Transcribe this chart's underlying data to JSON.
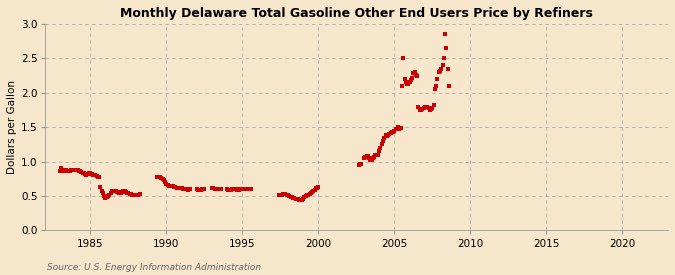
{
  "title": "Monthly Delaware Total Gasoline Other End Users Price by Refiners",
  "ylabel": "Dollars per Gallon",
  "source_text": "Source: U.S. Energy Information Administration",
  "background_color": "#f5e6cc",
  "plot_background_color": "#f5e6cc",
  "marker_color": "#cc0000",
  "marker_size": 2.5,
  "xlim": [
    1982,
    2023
  ],
  "ylim": [
    0.0,
    3.0
  ],
  "xticks": [
    1985,
    1990,
    1995,
    2000,
    2005,
    2010,
    2015,
    2020
  ],
  "yticks": [
    0.0,
    0.5,
    1.0,
    1.5,
    2.0,
    2.5,
    3.0
  ],
  "data": [
    [
      1983.0,
      0.87
    ],
    [
      1983.08,
      0.9
    ],
    [
      1983.17,
      0.88
    ],
    [
      1983.25,
      0.87
    ],
    [
      1983.33,
      0.88
    ],
    [
      1983.42,
      0.88
    ],
    [
      1983.5,
      0.87
    ],
    [
      1983.58,
      0.87
    ],
    [
      1983.67,
      0.86
    ],
    [
      1983.75,
      0.88
    ],
    [
      1983.83,
      0.88
    ],
    [
      1983.92,
      0.88
    ],
    [
      1984.0,
      0.88
    ],
    [
      1984.08,
      0.88
    ],
    [
      1984.17,
      0.88
    ],
    [
      1984.25,
      0.87
    ],
    [
      1984.33,
      0.86
    ],
    [
      1984.42,
      0.85
    ],
    [
      1984.5,
      0.84
    ],
    [
      1984.58,
      0.83
    ],
    [
      1984.67,
      0.82
    ],
    [
      1984.75,
      0.81
    ],
    [
      1984.83,
      0.82
    ],
    [
      1984.92,
      0.83
    ],
    [
      1985.0,
      0.83
    ],
    [
      1985.08,
      0.82
    ],
    [
      1985.17,
      0.81
    ],
    [
      1985.25,
      0.8
    ],
    [
      1985.33,
      0.8
    ],
    [
      1985.42,
      0.79
    ],
    [
      1985.5,
      0.78
    ],
    [
      1985.58,
      0.77
    ],
    [
      1985.67,
      0.63
    ],
    [
      1985.75,
      0.57
    ],
    [
      1985.83,
      0.55
    ],
    [
      1985.92,
      0.5
    ],
    [
      1986.0,
      0.47
    ],
    [
      1986.08,
      0.48
    ],
    [
      1986.17,
      0.5
    ],
    [
      1986.25,
      0.52
    ],
    [
      1986.33,
      0.55
    ],
    [
      1986.42,
      0.57
    ],
    [
      1986.5,
      0.58
    ],
    [
      1986.58,
      0.57
    ],
    [
      1986.67,
      0.57
    ],
    [
      1986.75,
      0.56
    ],
    [
      1986.83,
      0.56
    ],
    [
      1986.92,
      0.55
    ],
    [
      1987.0,
      0.55
    ],
    [
      1987.08,
      0.56
    ],
    [
      1987.17,
      0.57
    ],
    [
      1987.25,
      0.57
    ],
    [
      1987.33,
      0.56
    ],
    [
      1987.42,
      0.55
    ],
    [
      1987.5,
      0.54
    ],
    [
      1987.58,
      0.53
    ],
    [
      1987.67,
      0.53
    ],
    [
      1987.75,
      0.52
    ],
    [
      1987.83,
      0.52
    ],
    [
      1987.92,
      0.51
    ],
    [
      1988.0,
      0.51
    ],
    [
      1988.08,
      0.51
    ],
    [
      1988.17,
      0.52
    ],
    [
      1988.25,
      0.53
    ],
    [
      1989.42,
      0.78
    ],
    [
      1989.5,
      0.78
    ],
    [
      1989.58,
      0.77
    ],
    [
      1989.67,
      0.76
    ],
    [
      1989.75,
      0.75
    ],
    [
      1989.83,
      0.73
    ],
    [
      1989.92,
      0.7
    ],
    [
      1990.0,
      0.68
    ],
    [
      1990.08,
      0.66
    ],
    [
      1990.17,
      0.65
    ],
    [
      1990.25,
      0.65
    ],
    [
      1990.33,
      0.65
    ],
    [
      1990.42,
      0.64
    ],
    [
      1990.5,
      0.63
    ],
    [
      1990.58,
      0.63
    ],
    [
      1990.67,
      0.62
    ],
    [
      1990.75,
      0.62
    ],
    [
      1990.83,
      0.62
    ],
    [
      1990.92,
      0.61
    ],
    [
      1991.0,
      0.61
    ],
    [
      1991.08,
      0.6
    ],
    [
      1991.17,
      0.6
    ],
    [
      1991.25,
      0.6
    ],
    [
      1991.33,
      0.6
    ],
    [
      1991.42,
      0.59
    ],
    [
      1991.5,
      0.6
    ],
    [
      1991.58,
      0.6
    ],
    [
      1992.0,
      0.6
    ],
    [
      1992.08,
      0.59
    ],
    [
      1992.17,
      0.59
    ],
    [
      1992.25,
      0.59
    ],
    [
      1992.33,
      0.6
    ],
    [
      1992.42,
      0.6
    ],
    [
      1992.5,
      0.6
    ],
    [
      1993.0,
      0.61
    ],
    [
      1993.08,
      0.61
    ],
    [
      1993.17,
      0.6
    ],
    [
      1993.25,
      0.6
    ],
    [
      1993.33,
      0.6
    ],
    [
      1993.42,
      0.6
    ],
    [
      1993.5,
      0.6
    ],
    [
      1993.58,
      0.6
    ],
    [
      1994.0,
      0.6
    ],
    [
      1994.08,
      0.59
    ],
    [
      1994.17,
      0.59
    ],
    [
      1994.25,
      0.59
    ],
    [
      1994.33,
      0.6
    ],
    [
      1994.42,
      0.6
    ],
    [
      1994.5,
      0.6
    ],
    [
      1994.58,
      0.6
    ],
    [
      1994.67,
      0.59
    ],
    [
      1994.75,
      0.59
    ],
    [
      1994.83,
      0.6
    ],
    [
      1994.92,
      0.6
    ],
    [
      1995.0,
      0.6
    ],
    [
      1995.08,
      0.6
    ],
    [
      1995.17,
      0.6
    ],
    [
      1995.25,
      0.6
    ],
    [
      1995.33,
      0.6
    ],
    [
      1995.42,
      0.6
    ],
    [
      1995.5,
      0.6
    ],
    [
      1995.58,
      0.6
    ],
    [
      1997.42,
      0.52
    ],
    [
      1997.5,
      0.52
    ],
    [
      1997.58,
      0.52
    ],
    [
      1997.67,
      0.53
    ],
    [
      1997.75,
      0.53
    ],
    [
      1997.83,
      0.53
    ],
    [
      1997.92,
      0.52
    ],
    [
      1998.0,
      0.51
    ],
    [
      1998.08,
      0.5
    ],
    [
      1998.17,
      0.49
    ],
    [
      1998.25,
      0.48
    ],
    [
      1998.33,
      0.47
    ],
    [
      1998.42,
      0.47
    ],
    [
      1998.5,
      0.46
    ],
    [
      1998.58,
      0.46
    ],
    [
      1998.67,
      0.45
    ],
    [
      1998.75,
      0.44
    ],
    [
      1998.83,
      0.44
    ],
    [
      1998.92,
      0.44
    ],
    [
      1999.0,
      0.46
    ],
    [
      1999.08,
      0.48
    ],
    [
      1999.17,
      0.5
    ],
    [
      1999.25,
      0.51
    ],
    [
      1999.33,
      0.52
    ],
    [
      1999.42,
      0.53
    ],
    [
      1999.5,
      0.55
    ],
    [
      1999.58,
      0.56
    ],
    [
      1999.67,
      0.57
    ],
    [
      1999.75,
      0.59
    ],
    [
      1999.83,
      0.61
    ],
    [
      1999.92,
      0.62
    ],
    [
      2000.0,
      0.63
    ],
    [
      2002.67,
      0.95
    ],
    [
      2002.75,
      0.96
    ],
    [
      2002.83,
      0.96
    ],
    [
      2003.0,
      1.05
    ],
    [
      2003.08,
      1.07
    ],
    [
      2003.17,
      1.08
    ],
    [
      2003.25,
      1.08
    ],
    [
      2003.33,
      1.05
    ],
    [
      2003.42,
      1.03
    ],
    [
      2003.5,
      1.03
    ],
    [
      2003.58,
      1.05
    ],
    [
      2003.67,
      1.07
    ],
    [
      2003.75,
      1.09
    ],
    [
      2003.83,
      1.1
    ],
    [
      2003.92,
      1.1
    ],
    [
      2004.0,
      1.15
    ],
    [
      2004.08,
      1.2
    ],
    [
      2004.17,
      1.25
    ],
    [
      2004.25,
      1.3
    ],
    [
      2004.33,
      1.35
    ],
    [
      2004.42,
      1.38
    ],
    [
      2004.5,
      1.37
    ],
    [
      2004.58,
      1.38
    ],
    [
      2004.67,
      1.4
    ],
    [
      2004.75,
      1.42
    ],
    [
      2004.83,
      1.43
    ],
    [
      2004.92,
      1.43
    ],
    [
      2005.0,
      1.45
    ],
    [
      2005.08,
      1.47
    ],
    [
      2005.17,
      1.48
    ],
    [
      2005.25,
      1.5
    ],
    [
      2005.33,
      1.48
    ],
    [
      2005.42,
      1.49
    ],
    [
      2005.5,
      2.1
    ],
    [
      2005.58,
      2.5
    ],
    [
      2005.67,
      2.2
    ],
    [
      2005.75,
      2.15
    ],
    [
      2005.83,
      2.12
    ],
    [
      2005.92,
      2.13
    ],
    [
      2006.0,
      2.15
    ],
    [
      2006.08,
      2.18
    ],
    [
      2006.17,
      2.22
    ],
    [
      2006.25,
      2.28
    ],
    [
      2006.33,
      2.3
    ],
    [
      2006.42,
      2.26
    ],
    [
      2006.5,
      2.25
    ],
    [
      2006.58,
      1.8
    ],
    [
      2006.67,
      1.75
    ],
    [
      2006.75,
      1.75
    ],
    [
      2006.83,
      1.77
    ],
    [
      2006.92,
      1.78
    ],
    [
      2007.0,
      1.8
    ],
    [
      2007.08,
      1.8
    ],
    [
      2007.17,
      1.79
    ],
    [
      2007.25,
      1.78
    ],
    [
      2007.33,
      1.75
    ],
    [
      2007.42,
      1.76
    ],
    [
      2007.5,
      1.78
    ],
    [
      2007.58,
      1.82
    ],
    [
      2007.67,
      2.05
    ],
    [
      2007.75,
      2.1
    ],
    [
      2007.83,
      2.2
    ],
    [
      2007.92,
      2.3
    ],
    [
      2008.0,
      2.32
    ],
    [
      2008.08,
      2.35
    ],
    [
      2008.17,
      2.4
    ],
    [
      2008.25,
      2.5
    ],
    [
      2008.33,
      2.85
    ],
    [
      2008.42,
      2.65
    ],
    [
      2008.5,
      2.35
    ],
    [
      2008.58,
      2.1
    ]
  ]
}
